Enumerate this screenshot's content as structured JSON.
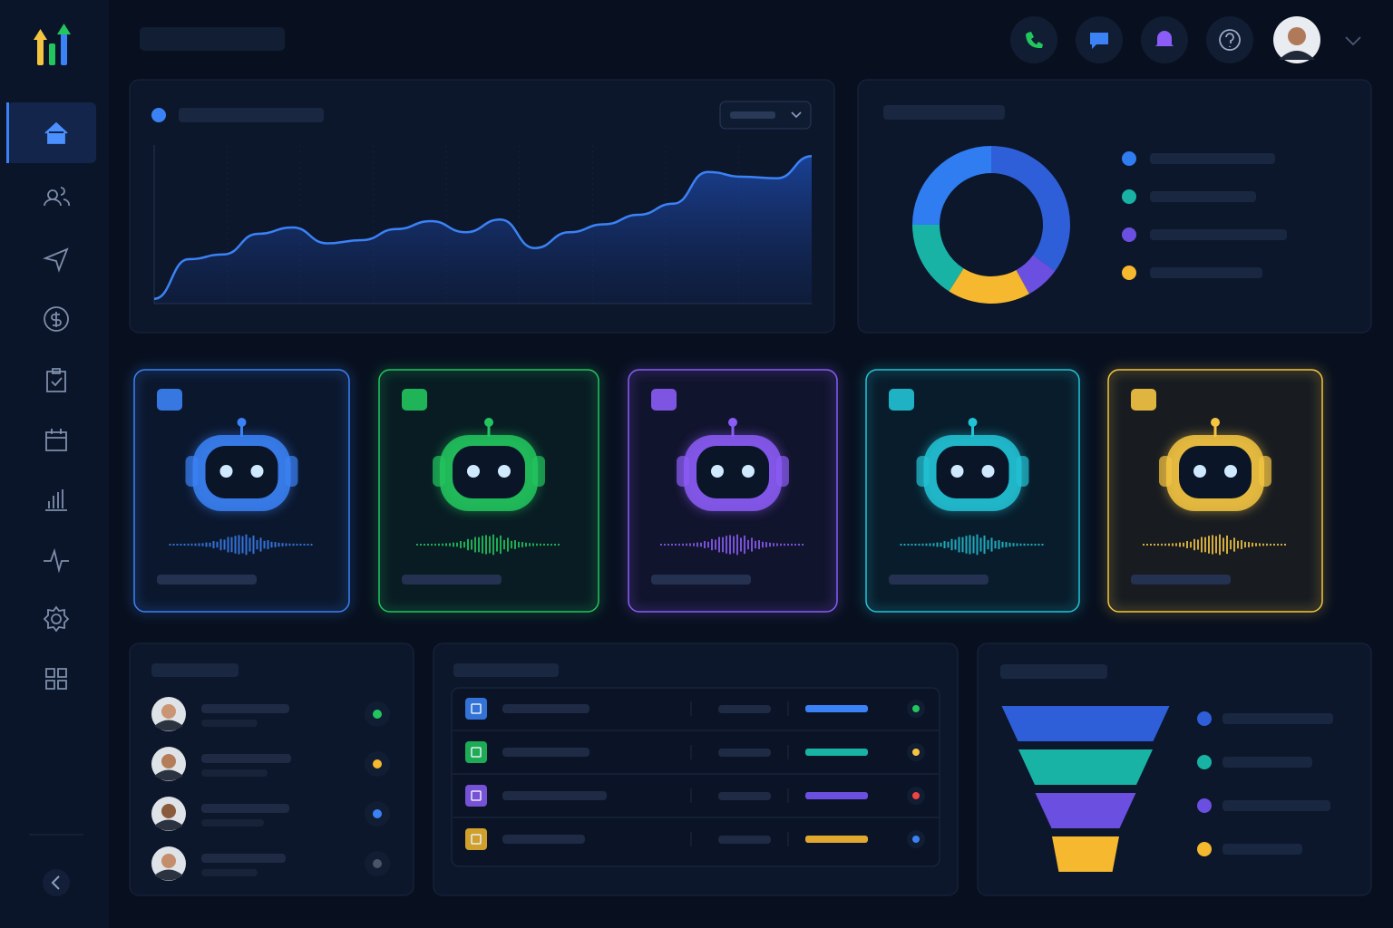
{
  "area_chart": {
    "type": "area",
    "values": [
      3,
      28,
      31,
      44,
      48,
      38,
      40,
      47,
      52,
      45,
      53,
      35,
      45,
      50,
      56,
      63,
      83,
      80,
      79,
      93
    ],
    "ylim": [
      0,
      100
    ],
    "color": "#3b82f6"
  },
  "donut": {
    "type": "pie",
    "values": [
      35,
      7,
      17,
      16,
      25
    ],
    "colors": [
      "#2f5fd8",
      "#6a4fe0",
      "#f5b82e",
      "#18b3a4",
      "#2f7df0"
    ]
  },
  "funnel": {
    "type": "funnel",
    "values": [
      100,
      80,
      60,
      40
    ],
    "colors": [
      "#2f5fd8",
      "#18b3a4",
      "#6a4fe0",
      "#f5b82e"
    ]
  }
}
